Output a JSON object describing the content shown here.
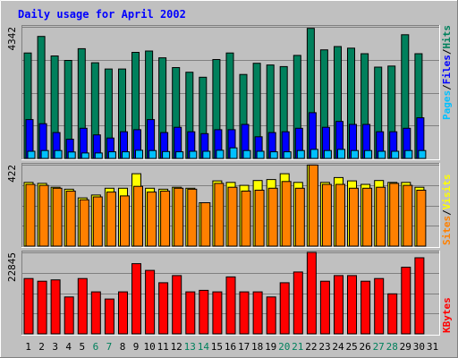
{
  "chart_data": {
    "title": "Daily usage for April 2002",
    "x": [
      "1",
      "2",
      "3",
      "4",
      "5",
      "6",
      "7",
      "8",
      "9",
      "10",
      "11",
      "12",
      "13",
      "14",
      "15",
      "16",
      "17",
      "18",
      "19",
      "20",
      "21",
      "22",
      "23",
      "24",
      "25",
      "26",
      "27",
      "28",
      "29",
      "30",
      "31"
    ],
    "weekend_days": [
      "6",
      "7",
      "13",
      "14",
      "20",
      "21",
      "27",
      "28"
    ],
    "colors": {
      "background": "#C0C0C0",
      "title": "#0000FF",
      "hits": "#00805C",
      "files": "#0000FF",
      "pages": "#00C0FF",
      "visits": "#FFFF00",
      "sites": "#FF8000",
      "kbytes": "#FF0000",
      "weekend_label": "#00805C"
    },
    "charts": [
      {
        "type": "bar",
        "ymax_label": "4342",
        "ylim": [
          0,
          4342
        ],
        "legend": [
          "Pages",
          "/",
          "Files",
          "/",
          "Hits"
        ],
        "series": [
          {
            "name": "Hits",
            "values": [
              3480,
              4026,
              3381,
              3234,
              3621,
              3157,
              2950,
              2950,
              3499,
              3545,
              3319,
              2999,
              2844,
              2680,
              3265,
              3480,
              2770,
              3140,
              3085,
              3030,
              3401,
              4291,
              3584,
              3692,
              3639,
              3455,
              3012,
              3048,
              4081,
              3455,
              null
            ]
          },
          {
            "name": "Files",
            "values": [
              1283,
              1147,
              853,
              634,
              995,
              777,
              672,
              880,
              949,
              1283,
              853,
              1027,
              880,
              819,
              949,
              949,
              1122,
              714,
              853,
              880,
              995,
              1510,
              1027,
              1220,
              1122,
              1122,
              880,
              880,
              995,
              1340,
              null
            ]
          },
          {
            "name": "Pages",
            "values": [
              236,
              260,
              260,
              212,
              180,
              180,
              219,
              219,
              268,
              260,
              228,
              219,
              236,
              236,
              268,
              350,
              260,
              236,
              219,
              219,
              260,
              299,
              260,
              299,
              260,
              260,
              236,
              236,
              260,
              260,
              null
            ]
          }
        ]
      },
      {
        "type": "bar",
        "ymax_label": "422",
        "ylim": [
          0,
          422
        ],
        "legend": [
          "Sites",
          "/",
          "Visits"
        ],
        "series": [
          {
            "name": "Visits",
            "values": [
              330,
              325,
              305,
              295,
              250,
              265,
              300,
              300,
              375,
              300,
              295,
              305,
              300,
              225,
              338,
              330,
              315,
              340,
              345,
              375,
              330,
              420,
              330,
              355,
              338,
              320,
              340,
              330,
              330,
              305,
              null
            ]
          },
          {
            "name": "Sites",
            "values": [
              320,
              315,
              300,
              285,
              240,
              255,
              280,
              260,
              310,
              280,
              285,
              300,
              295,
              225,
              325,
              305,
              285,
              290,
              300,
              335,
              300,
              420,
              320,
              320,
              300,
              300,
              305,
              325,
              315,
              290,
              null
            ]
          }
        ]
      },
      {
        "type": "bar",
        "ymax_label": "22845",
        "ylim": [
          0,
          22845
        ],
        "legend": [
          "KBytes"
        ],
        "series": [
          {
            "name": "KBytes",
            "values": [
              15510,
              14752,
              15140,
              10346,
              15510,
              11775,
              9775,
              11775,
              19673,
              17804,
              14346,
              16346,
              11775,
              12204,
              11775,
              15970,
              11775,
              11775,
              10346,
              14346,
              17346,
              22845,
              14752,
              16346,
              16346,
              14752,
              15510,
              11224,
              18673,
              21327,
              null
            ]
          }
        ]
      }
    ]
  }
}
